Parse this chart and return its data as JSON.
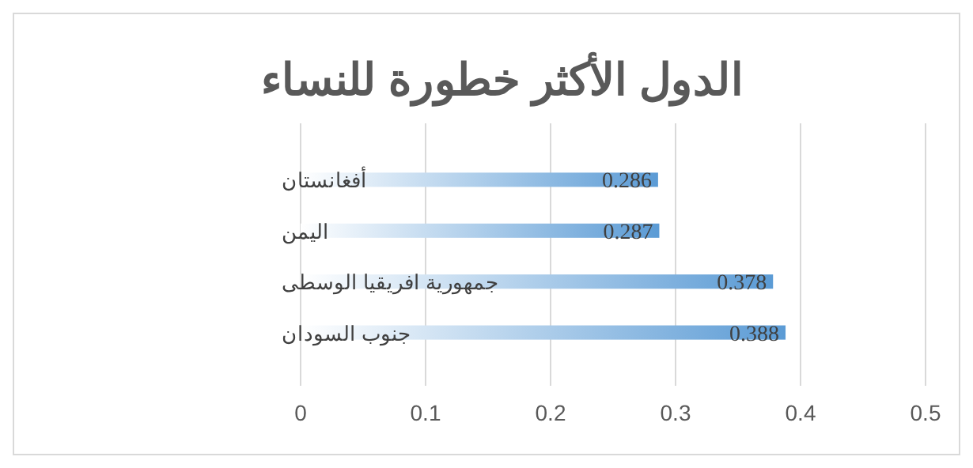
{
  "chart_data": {
    "type": "bar",
    "orientation": "horizontal",
    "title": "الدول الأكثر خطورة للنساء",
    "categories": [
      "أفغانستان",
      "اليمن",
      "جمهورية افريقيا الوسطى",
      "جنوب السودان"
    ],
    "values": [
      0.286,
      0.287,
      0.378,
      0.388
    ],
    "color": "#5b9bd5",
    "xlim": [
      0,
      0.5
    ],
    "xticks": [
      0,
      0.1,
      0.2,
      0.3,
      0.4,
      0.5
    ],
    "grid": "x",
    "data_labels": true
  }
}
